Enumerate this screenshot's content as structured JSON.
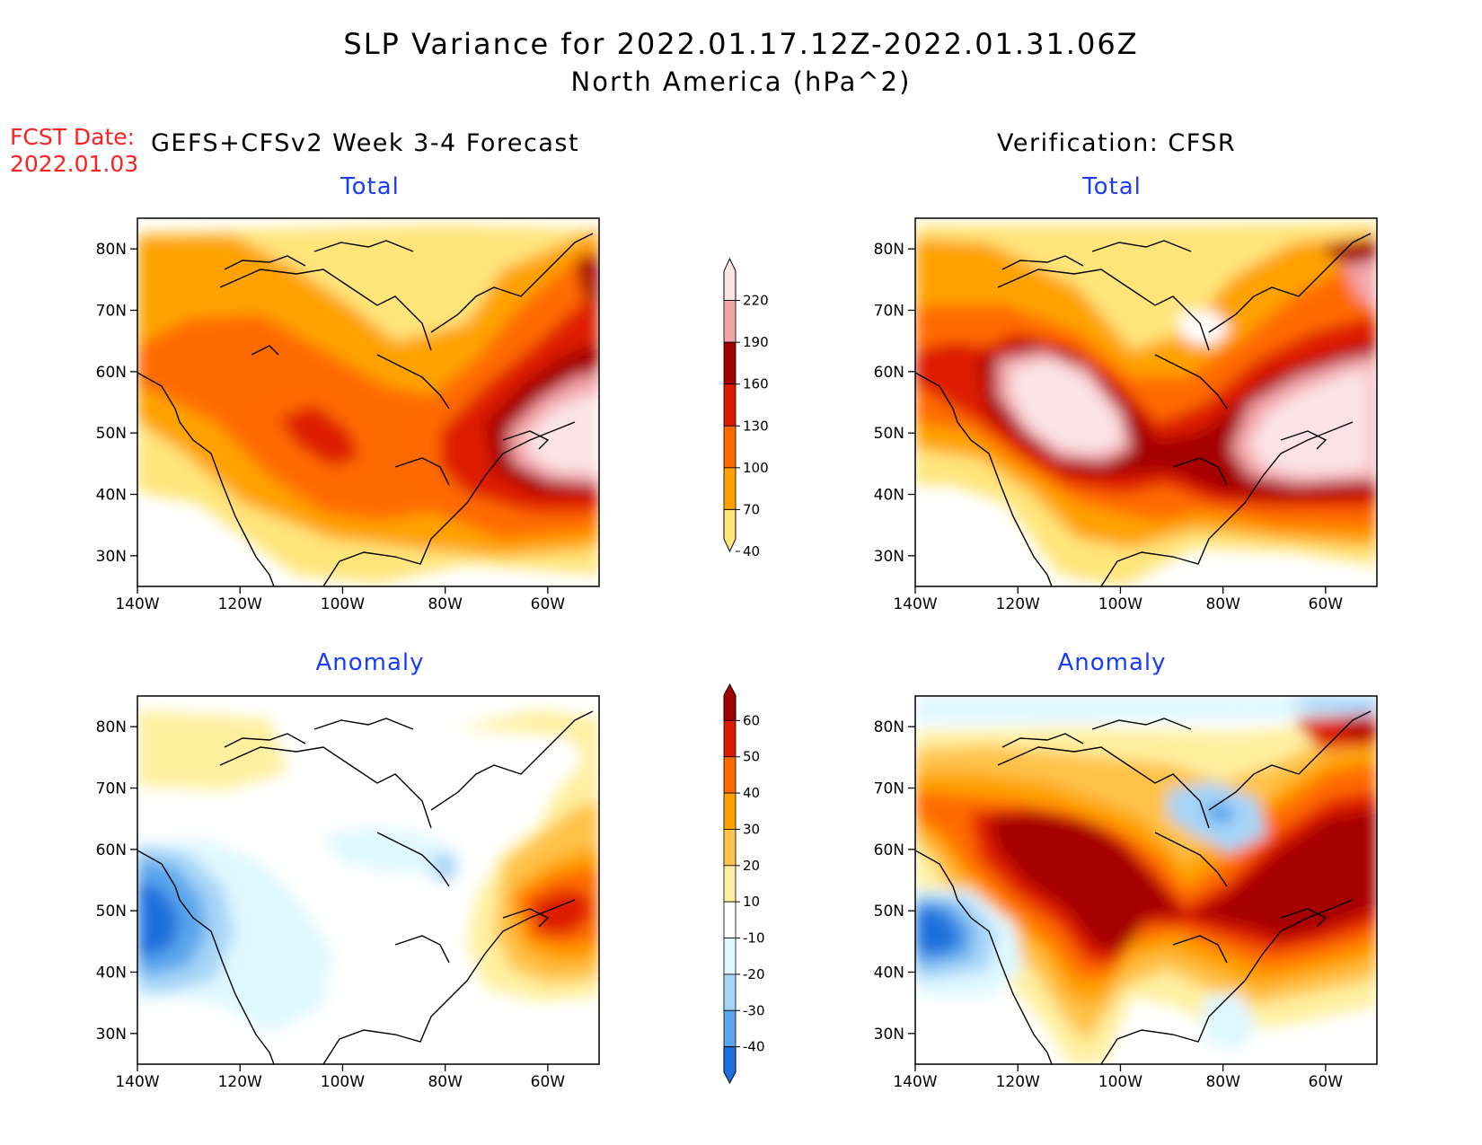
{
  "title": {
    "line1": "SLP Variance for 2022.01.17.12Z-2022.01.31.06Z",
    "line2": "North America (hPa^2)"
  },
  "fcst_date": {
    "label": "FCST Date:",
    "value": "2022.01.03"
  },
  "columns": {
    "left": "GEFS+CFSv2 Week 3-4 Forecast",
    "right": "Verification: CFSR"
  },
  "panel_titles": {
    "tl": "Total",
    "tr": "Total",
    "bl": "Anomaly",
    "br": "Anomaly"
  },
  "map_extent": {
    "lon": [
      -140,
      -50
    ],
    "lat": [
      25,
      85
    ]
  },
  "axis_ticks": {
    "lat": [
      "80N",
      "70N",
      "60N",
      "50N",
      "40N",
      "30N"
    ],
    "lon": [
      "140W",
      "120W",
      "100W",
      "80W",
      "60W"
    ]
  },
  "colorbars": {
    "total": {
      "labels": [
        "220",
        "190",
        "160",
        "130",
        "100",
        "70",
        "40"
      ],
      "colors": [
        "#fbe3e5",
        "#f3a4a8",
        "#a50000",
        "#dd1a00",
        "#ff6a00",
        "#ffa200",
        "#ffe57a"
      ]
    },
    "anomaly": {
      "labels": [
        "60",
        "50",
        "40",
        "30",
        "20",
        "10",
        "-10",
        "-20",
        "-30",
        "-40"
      ],
      "colors": [
        "#a50000",
        "#dd1a00",
        "#ff6a00",
        "#ffa200",
        "#ffc24a",
        "#fff0a0",
        "#ffffff",
        "#dff8ff",
        "#a6d4f7",
        "#5aa6ec",
        "#1e6fdc"
      ]
    }
  }
}
